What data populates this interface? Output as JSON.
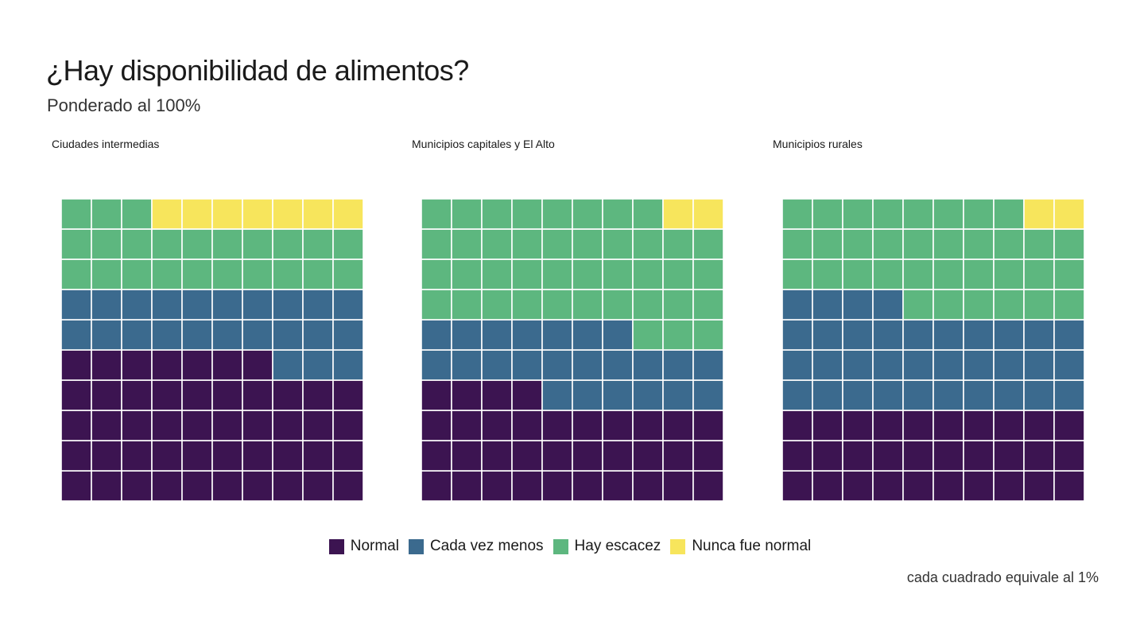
{
  "chart_data": {
    "type": "waffle",
    "title": "¿Hay disponibilidad de alimentos?",
    "subtitle": "Ponderado al 100%",
    "caption": "cada cuadrado equivale al 1%",
    "grid": {
      "rows": 10,
      "cols": 10
    },
    "categories": [
      "Normal",
      "Cada vez menos",
      "Hay escacez",
      "Nunca fue normal"
    ],
    "colors": {
      "Normal": "#3c1451",
      "Cada vez menos": "#3b6a8e",
      "Hay escacez": "#5db77f",
      "Nunca fue normal": "#f7e55c"
    },
    "legend_position": "bottom",
    "facets": [
      {
        "label": "Ciudades intermedias",
        "values": [
          47,
          23,
          23,
          7
        ]
      },
      {
        "label": "Municipios capitales y El Alto",
        "values": [
          34,
          23,
          41,
          2
        ]
      },
      {
        "label": "Municipios rurales",
        "values": [
          30,
          34,
          34,
          2
        ]
      }
    ]
  }
}
